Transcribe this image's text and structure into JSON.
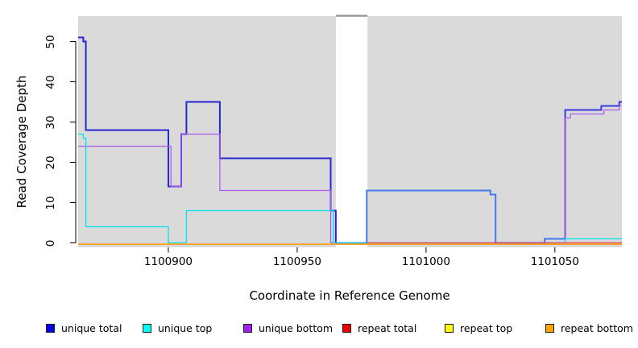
{
  "axes": {
    "x": {
      "label": "Coordinate in Reference Genome",
      "ticks": [
        1100900,
        1100950,
        1101000,
        1101050
      ]
    },
    "y": {
      "label": "Read Coverage Depth",
      "ticks": [
        0,
        10,
        20,
        30,
        40,
        50
      ]
    }
  },
  "legend": {
    "items": [
      {
        "label": "unique total",
        "color": "#0000EE"
      },
      {
        "label": "unique top",
        "color": "#00FFFF"
      },
      {
        "label": "unique bottom",
        "color": "#A020F0"
      },
      {
        "label": "repeat total",
        "color": "#EE0000"
      },
      {
        "label": "repeat top",
        "color": "#FFFF00"
      },
      {
        "label": "repeat bottom",
        "color": "#FFA500"
      }
    ]
  },
  "chart_data": {
    "type": "line",
    "style": "step",
    "title": "",
    "xlabel": "Coordinate in Reference Genome",
    "ylabel": "Read Coverage Depth",
    "xlim": [
      1100865,
      1101076
    ],
    "ylim": [
      -1.1,
      56.3
    ],
    "x_ticks": [
      1100900,
      1100950,
      1101000,
      1101050
    ],
    "y_ticks": [
      0,
      10,
      20,
      30,
      40,
      50
    ],
    "grid": false,
    "legend_position": "bottom",
    "plot_bg": "#DADADA",
    "gap_region": {
      "from": 1100965,
      "to": 1100977.3,
      "fill": "#FFFFFF",
      "cap_color": "#909090"
    },
    "series": [
      {
        "name": "unique total",
        "width": 2,
        "dy": 0,
        "segments": [
          {
            "color": "#2727D1",
            "points": [
              [
                1100865,
                51
              ],
              [
                1100867,
                50
              ],
              [
                1100868,
                28
              ],
              [
                1100900,
                14
              ],
              [
                1100905,
                27
              ],
              [
                1100907,
                35
              ],
              [
                1100920,
                21
              ],
              [
                1100963,
                8
              ],
              [
                1100965,
                0
              ]
            ]
          },
          {
            "color": "#4478EC",
            "points": [
              [
                1100965,
                0
              ],
              [
                1100977,
                13
              ],
              [
                1101025,
                12
              ],
              [
                1101027,
                0
              ],
              [
                1101046,
                1
              ],
              [
                1101054,
                1
              ]
            ]
          },
          {
            "color": "#3838E0",
            "points": [
              [
                1101054,
                1
              ],
              [
                1101054,
                33
              ],
              [
                1101068,
                34
              ],
              [
                1101075,
                35
              ],
              [
                1101076,
                35
              ]
            ]
          }
        ]
      },
      {
        "name": "unique bottom",
        "width": 1.3,
        "dy": 0,
        "segments": [
          {
            "color": "#AB5CEA",
            "points": [
              [
                1100865,
                24
              ],
              [
                1100901,
                14
              ],
              [
                1100905,
                27
              ],
              [
                1100920,
                13
              ],
              [
                1100963,
                0
              ],
              [
                1101054,
                31
              ],
              [
                1101056,
                32
              ],
              [
                1101069,
                33
              ],
              [
                1101075,
                34
              ],
              [
                1101076,
                34
              ]
            ]
          }
        ]
      },
      {
        "name": "unique top",
        "width": 1.3,
        "dy": 0,
        "segments": [
          {
            "color": "#00E2F0",
            "points": [
              [
                1100865,
                27
              ],
              [
                1100867,
                26
              ],
              [
                1100868,
                4
              ],
              [
                1100900,
                0
              ],
              [
                1100907,
                8
              ],
              [
                1100964,
                0
              ],
              [
                1101054,
                1
              ],
              [
                1101076,
                1
              ]
            ]
          }
        ]
      },
      {
        "name": "repeat top",
        "width": 1.3,
        "dy": 1.6,
        "segments": [
          {
            "color": "#F5F500",
            "points": [
              [
                1100865,
                0
              ],
              [
                1101076,
                0
              ]
            ]
          }
        ]
      },
      {
        "name": "repeat total",
        "width": 1.3,
        "dy": 0,
        "segments": [
          {
            "color": "#E2425C",
            "points": [
              [
                1100977,
                0
              ],
              [
                1101076,
                0
              ]
            ]
          }
        ]
      },
      {
        "name": "repeat bottom",
        "width": 1.8,
        "dy": 1.6,
        "segments": [
          {
            "color": "#FF9F1C",
            "points": [
              [
                1100865,
                0
              ],
              [
                1101076,
                0
              ]
            ]
          }
        ]
      }
    ]
  }
}
